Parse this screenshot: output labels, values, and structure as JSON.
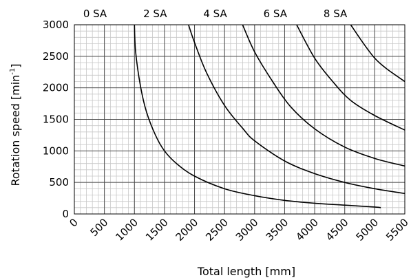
{
  "chart_data": {
    "type": "line",
    "title": "",
    "xlabel": "Total length [mm]",
    "ylabel": "Rotation speed [min",
    "ylabel_sup": "-1",
    "ylabel_end": "]",
    "xlim": [
      0,
      5500
    ],
    "ylim": [
      0,
      3000
    ],
    "x_ticks": [
      "0",
      "500",
      "1000",
      "1500",
      "2000",
      "2500",
      "3000",
      "3500",
      "4000",
      "4500",
      "5000",
      "5500"
    ],
    "y_ticks": [
      "0",
      "500",
      "1000",
      "1500",
      "2000",
      "2500",
      "3000"
    ],
    "top_labels": [
      "0 SA",
      "2 SA",
      "4 SA",
      "6 SA",
      "8 SA"
    ],
    "grid": true,
    "line_color": "#000000",
    "series": [
      {
        "x": [
          1000,
          1020,
          1100,
          1200,
          1350,
          1500,
          1700,
          2000,
          2500,
          3000,
          3500,
          4000,
          4500,
          5000,
          5100
        ],
        "y": [
          3000,
          2570,
          2030,
          1620,
          1250,
          1000,
          800,
          600,
          400,
          290,
          215,
          170,
          140,
          110,
          100
        ]
      },
      {
        "x": [
          1900,
          2000,
          2200,
          2500,
          2800,
          3000,
          3500,
          4000,
          4500,
          5000,
          5500
        ],
        "y": [
          3000,
          2720,
          2240,
          1720,
          1360,
          1160,
          840,
          640,
          500,
          400,
          325
        ]
      },
      {
        "x": [
          2800,
          3000,
          3300,
          3600,
          4000,
          4500,
          5000,
          5500
        ],
        "y": [
          3000,
          2570,
          2100,
          1700,
          1350,
          1060,
          880,
          760
        ]
      },
      {
        "x": [
          3700,
          4000,
          4300,
          4600,
          5000,
          5500
        ],
        "y": [
          3000,
          2470,
          2100,
          1800,
          1560,
          1330
        ]
      },
      {
        "x": [
          4600,
          4800,
          5000,
          5200,
          5500
        ],
        "y": [
          3000,
          2720,
          2470,
          2300,
          2100
        ]
      }
    ]
  }
}
